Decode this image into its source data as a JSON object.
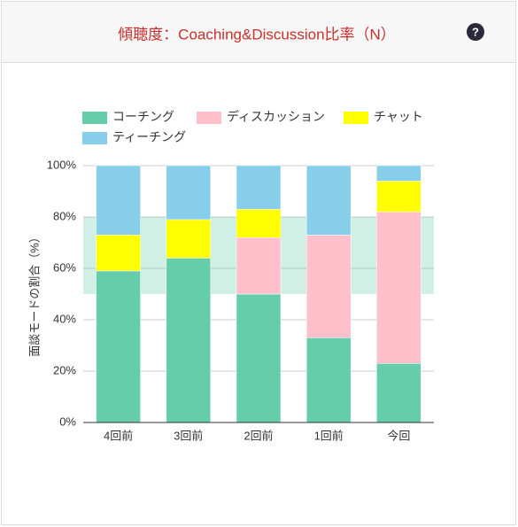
{
  "header": {
    "title": "傾聴度：Coaching&Discussion比率（N）",
    "help_icon": "?"
  },
  "chart_data": {
    "type": "stacked_bar",
    "y_label": "面談モードの割合（%）",
    "categories": [
      "4回前",
      "3回前",
      "2回前",
      "1回前",
      "今回"
    ],
    "series": [
      {
        "name": "コーチング",
        "color": "#66cdaa",
        "values": [
          59,
          64,
          50,
          33,
          23
        ]
      },
      {
        "name": "ディスカッション",
        "color": "#ffc0cb",
        "values": [
          0,
          0,
          22,
          40,
          59
        ]
      },
      {
        "name": "チャット",
        "color": "#ffff00",
        "values": [
          14,
          15,
          11,
          0,
          12
        ]
      },
      {
        "name": "ティーチング",
        "color": "#87ceeb",
        "values": [
          27,
          21,
          17,
          27,
          6
        ]
      }
    ],
    "ylim": [
      0,
      100
    ],
    "yticks": [
      {
        "value": 0,
        "label": "0%"
      },
      {
        "value": 20,
        "label": "20%"
      },
      {
        "value": 40,
        "label": "40%"
      },
      {
        "value": 60,
        "label": "60%"
      },
      {
        "value": 80,
        "label": "80%"
      },
      {
        "value": 100,
        "label": "100%"
      }
    ],
    "target_band": [
      50,
      80
    ],
    "band_color": "rgba(102,205,170,0.3)",
    "grid": true
  }
}
